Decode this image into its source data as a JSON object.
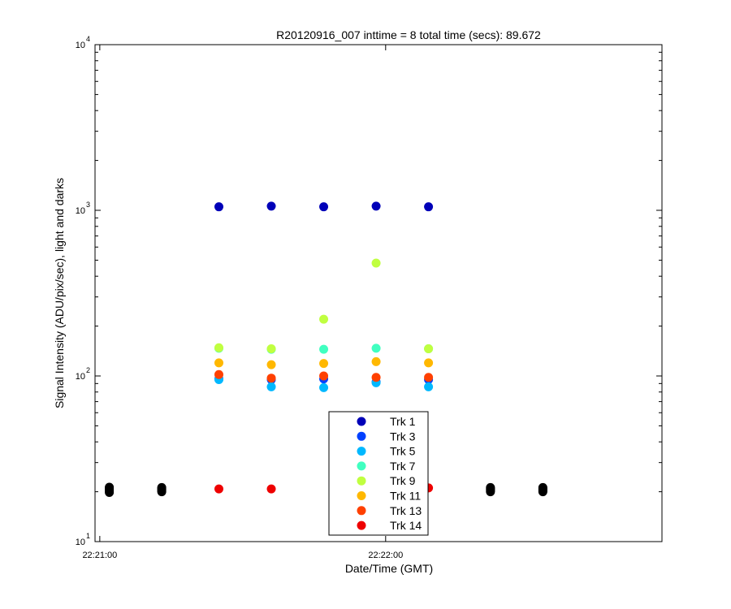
{
  "chart_data": {
    "type": "scatter",
    "title": "R20120916_007 inttime = 8 total time (secs): 89.672",
    "xlabel": "Date/Time (GMT)",
    "ylabel": "Signal Intensity (ADU/pix/sec), light and darks",
    "yscale": "log",
    "ylim": [
      10,
      10000
    ],
    "xlim": [
      "22:20:59",
      "22:22:58"
    ],
    "x_ticks": [
      {
        "value": "22:21:00",
        "label": "22:21:00"
      },
      {
        "value": "22:22:00",
        "label": "22:22:00"
      }
    ],
    "y_ticks": [
      {
        "value": 10,
        "base": "10",
        "exp": "1"
      },
      {
        "value": 100,
        "base": "10",
        "exp": "2"
      },
      {
        "value": 1000,
        "base": "10",
        "exp": "3"
      },
      {
        "value": 10000,
        "base": "10",
        "exp": "4"
      }
    ],
    "grid": false,
    "legend_position": "bottom-center",
    "series": [
      {
        "name": "Trk 1",
        "color": "#0000b8",
        "x": [
          "22:21:25",
          "22:21:36",
          "22:21:47",
          "22:21:58",
          "22:22:09"
        ],
        "values": [
          1050,
          1060,
          1050,
          1060,
          1050
        ]
      },
      {
        "name": "Trk 3",
        "color": "#0040ff",
        "x": [
          "22:21:25",
          "22:21:36",
          "22:21:47",
          "22:21:58",
          "22:22:09"
        ],
        "values": [
          96,
          95,
          96,
          92,
          95
        ]
      },
      {
        "name": "Trk 5",
        "color": "#00b8ff",
        "x": [
          "22:21:25",
          "22:21:36",
          "22:21:47",
          "22:21:58",
          "22:22:09"
        ],
        "values": [
          95,
          86,
          85,
          91,
          86
        ]
      },
      {
        "name": "Trk 7",
        "color": "#40ffc0",
        "x": [
          "22:21:25",
          "22:21:36",
          "22:21:47",
          "22:21:58",
          "22:22:09"
        ],
        "values": [
          147,
          145,
          145,
          147,
          146
        ]
      },
      {
        "name": "Trk 9",
        "color": "#c0ff40",
        "x": [
          "22:21:25",
          "22:21:36",
          "22:21:47",
          "22:21:58",
          "22:22:09"
        ],
        "values": [
          148,
          146,
          220,
          480,
          146
        ]
      },
      {
        "name": "Trk 11",
        "color": "#ffb800",
        "x": [
          "22:21:25",
          "22:21:36",
          "22:21:47",
          "22:21:58",
          "22:22:09"
        ],
        "values": [
          120,
          117,
          119,
          122,
          120
        ]
      },
      {
        "name": "Trk 13",
        "color": "#ff4000",
        "x": [
          "22:21:25",
          "22:21:36",
          "22:21:47",
          "22:21:58",
          "22:22:09"
        ],
        "values": [
          102,
          97,
          100,
          98,
          98
        ]
      },
      {
        "name": "Trk 14",
        "color": "#ee0000",
        "x": [
          "22:21:25",
          "22:21:36",
          "22:22:09"
        ],
        "values": [
          20.8,
          20.8,
          21.1
        ]
      },
      {
        "color": "#000000",
        "x": [
          "22:21:02",
          "22:21:02",
          "22:21:02",
          "22:21:02",
          "22:21:02",
          "22:21:13",
          "22:21:13",
          "22:21:13",
          "22:21:13",
          "22:21:13",
          "22:22:22",
          "22:22:22",
          "22:22:22",
          "22:22:22",
          "22:22:22",
          "22:22:33",
          "22:22:33",
          "22:22:33",
          "22:22:33",
          "22:22:33"
        ],
        "values": [
          19.8,
          20.2,
          20.6,
          21.0,
          21.3,
          20.0,
          20.3,
          20.6,
          20.9,
          21.2,
          20.0,
          20.3,
          20.6,
          20.9,
          21.2,
          20.0,
          20.3,
          20.6,
          20.9,
          21.2
        ]
      }
    ]
  }
}
